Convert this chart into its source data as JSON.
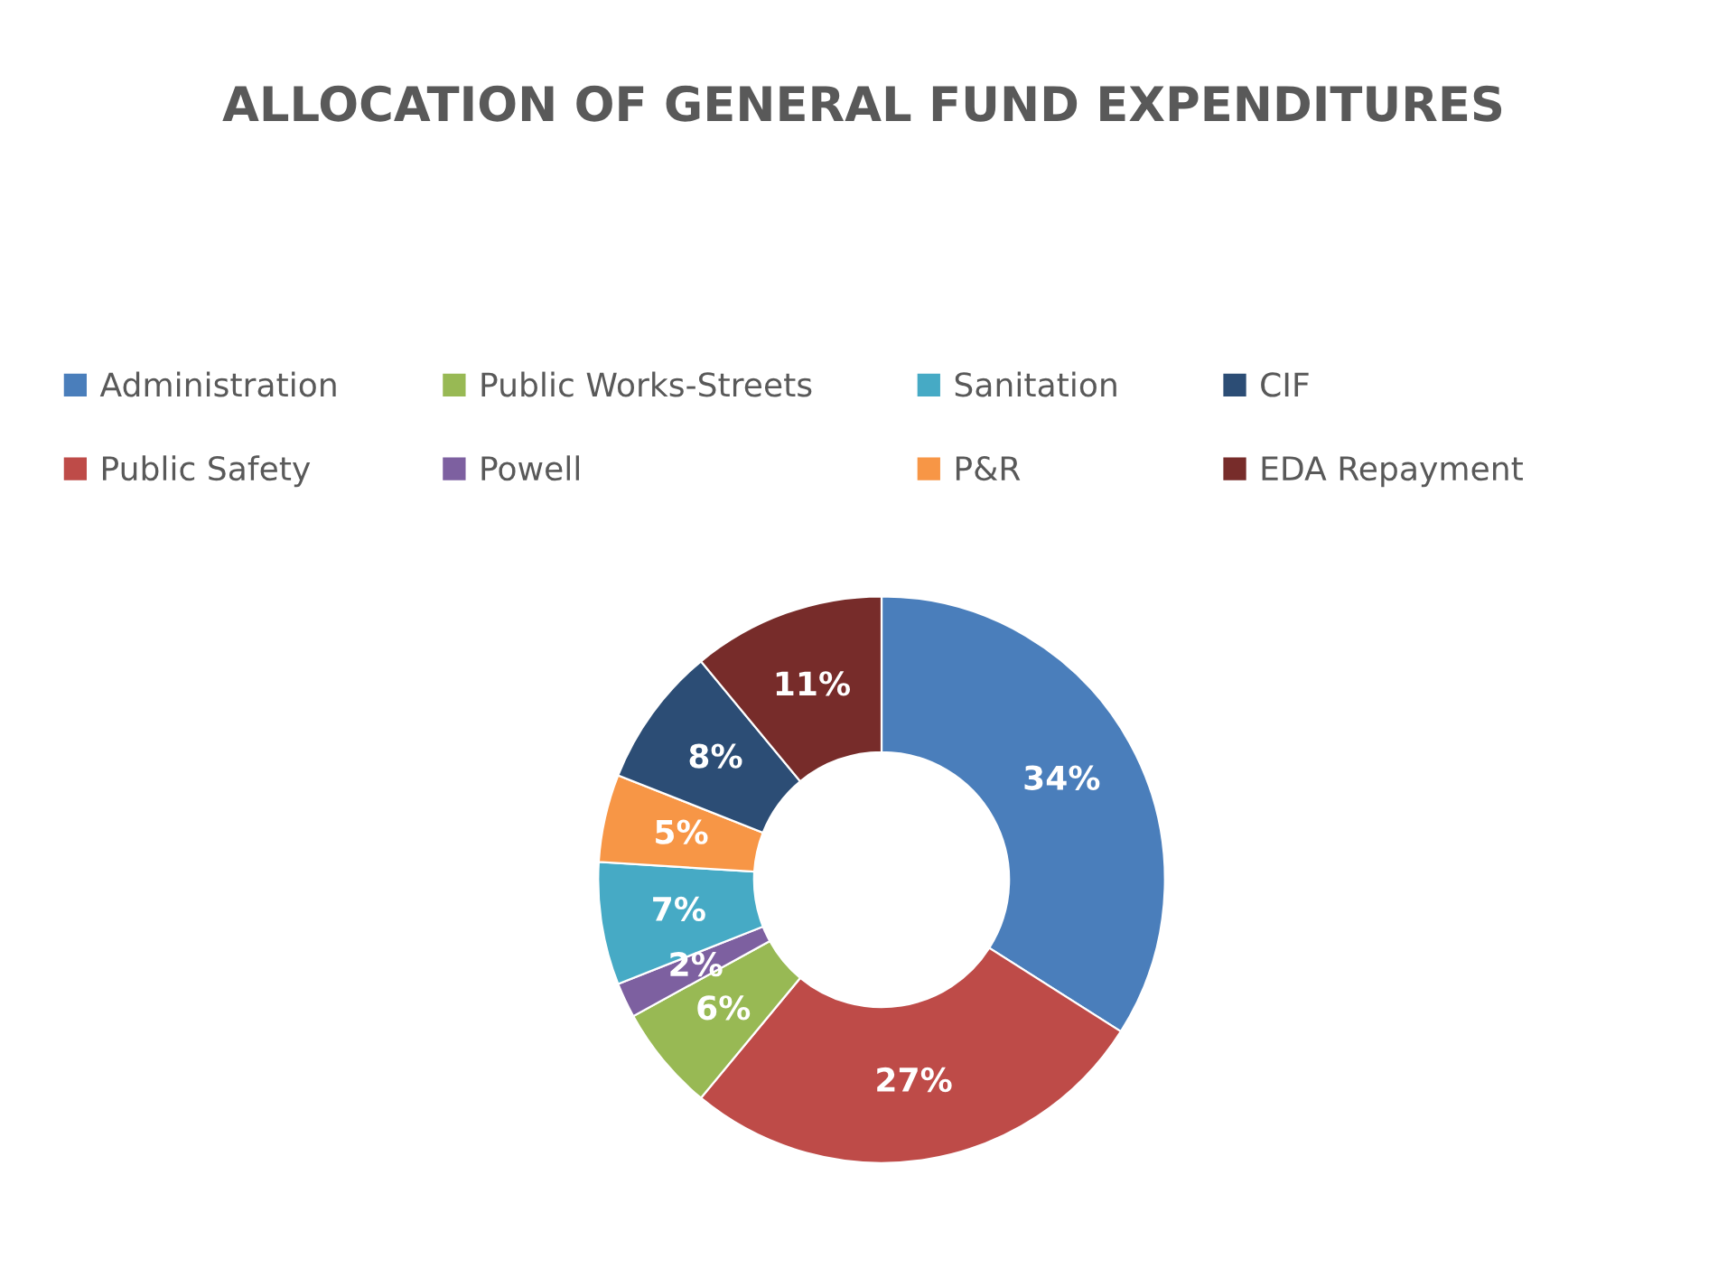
{
  "chart_data": {
    "type": "donut",
    "title": "ALLOCATION OF GENERAL FUND EXPENDITURES",
    "categories": [
      "Administration",
      "Public Safety",
      "Public Works-Streets",
      "Powell",
      "Sanitation",
      "P&R",
      "CIF",
      "EDA Repayment"
    ],
    "values": [
      34,
      27,
      6,
      2,
      7,
      5,
      8,
      11
    ],
    "colors": [
      "#4a7ebb",
      "#be4b48",
      "#98b954",
      "#7d60a0",
      "#46aac5",
      "#f79646",
      "#2c4d75",
      "#772c2a"
    ],
    "value_labels": [
      "34%",
      "27%",
      "6%",
      "2%",
      "7%",
      "5%",
      "8%",
      "11%"
    ],
    "legend": "top"
  }
}
